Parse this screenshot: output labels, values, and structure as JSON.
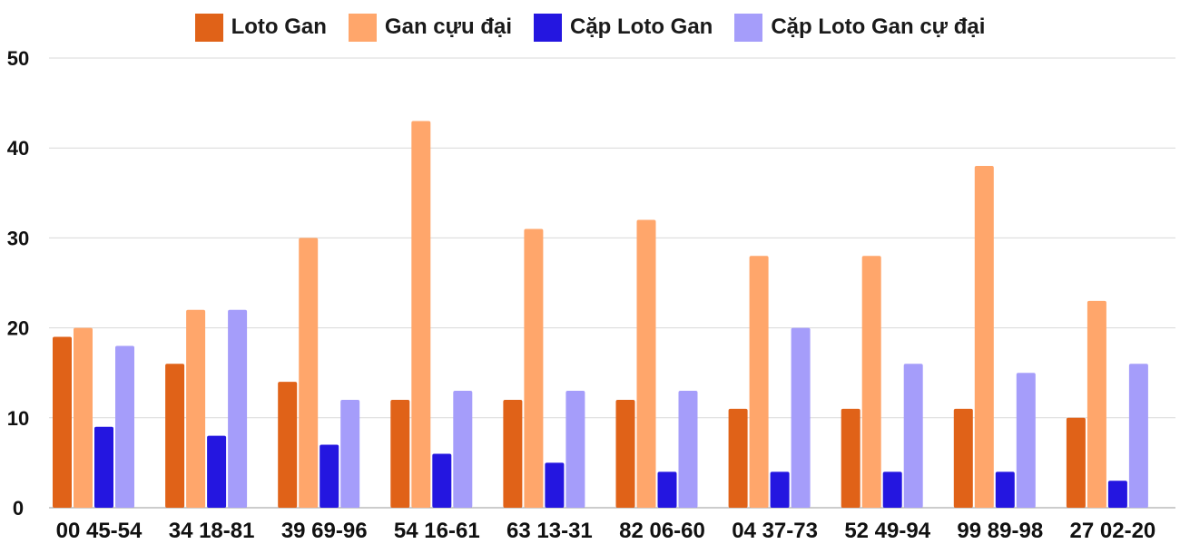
{
  "chart_data": {
    "type": "bar",
    "title": "",
    "xlabel": "",
    "ylabel": "",
    "ylim": [
      0,
      50
    ],
    "yticks": [
      0,
      10,
      20,
      30,
      40,
      50
    ],
    "grid": true,
    "legend_position": "top-center",
    "categories": [
      "00 45-54",
      "34 18-81",
      "39 69-96",
      "54 16-61",
      "63 13-31",
      "82 06-60",
      "04 37-73",
      "52 49-94",
      "99 89-98",
      "27 02-20"
    ],
    "series": [
      {
        "name": "Loto Gan",
        "color": "#e06218",
        "values": [
          19,
          16,
          14,
          12,
          12,
          12,
          11,
          11,
          11,
          10
        ]
      },
      {
        "name": "Gan cựu đại",
        "color": "#ffa66b",
        "values": [
          20,
          22,
          30,
          43,
          31,
          32,
          28,
          28,
          38,
          23
        ]
      },
      {
        "name": "Cặp Loto Gan",
        "color": "#2416e0",
        "values": [
          9,
          8,
          7,
          6,
          5,
          4,
          4,
          4,
          4,
          3
        ]
      },
      {
        "name": "Cặp Loto Gan cự đại",
        "color": "#a59dfa",
        "values": [
          18,
          22,
          12,
          13,
          13,
          13,
          20,
          16,
          15,
          16
        ]
      }
    ]
  }
}
